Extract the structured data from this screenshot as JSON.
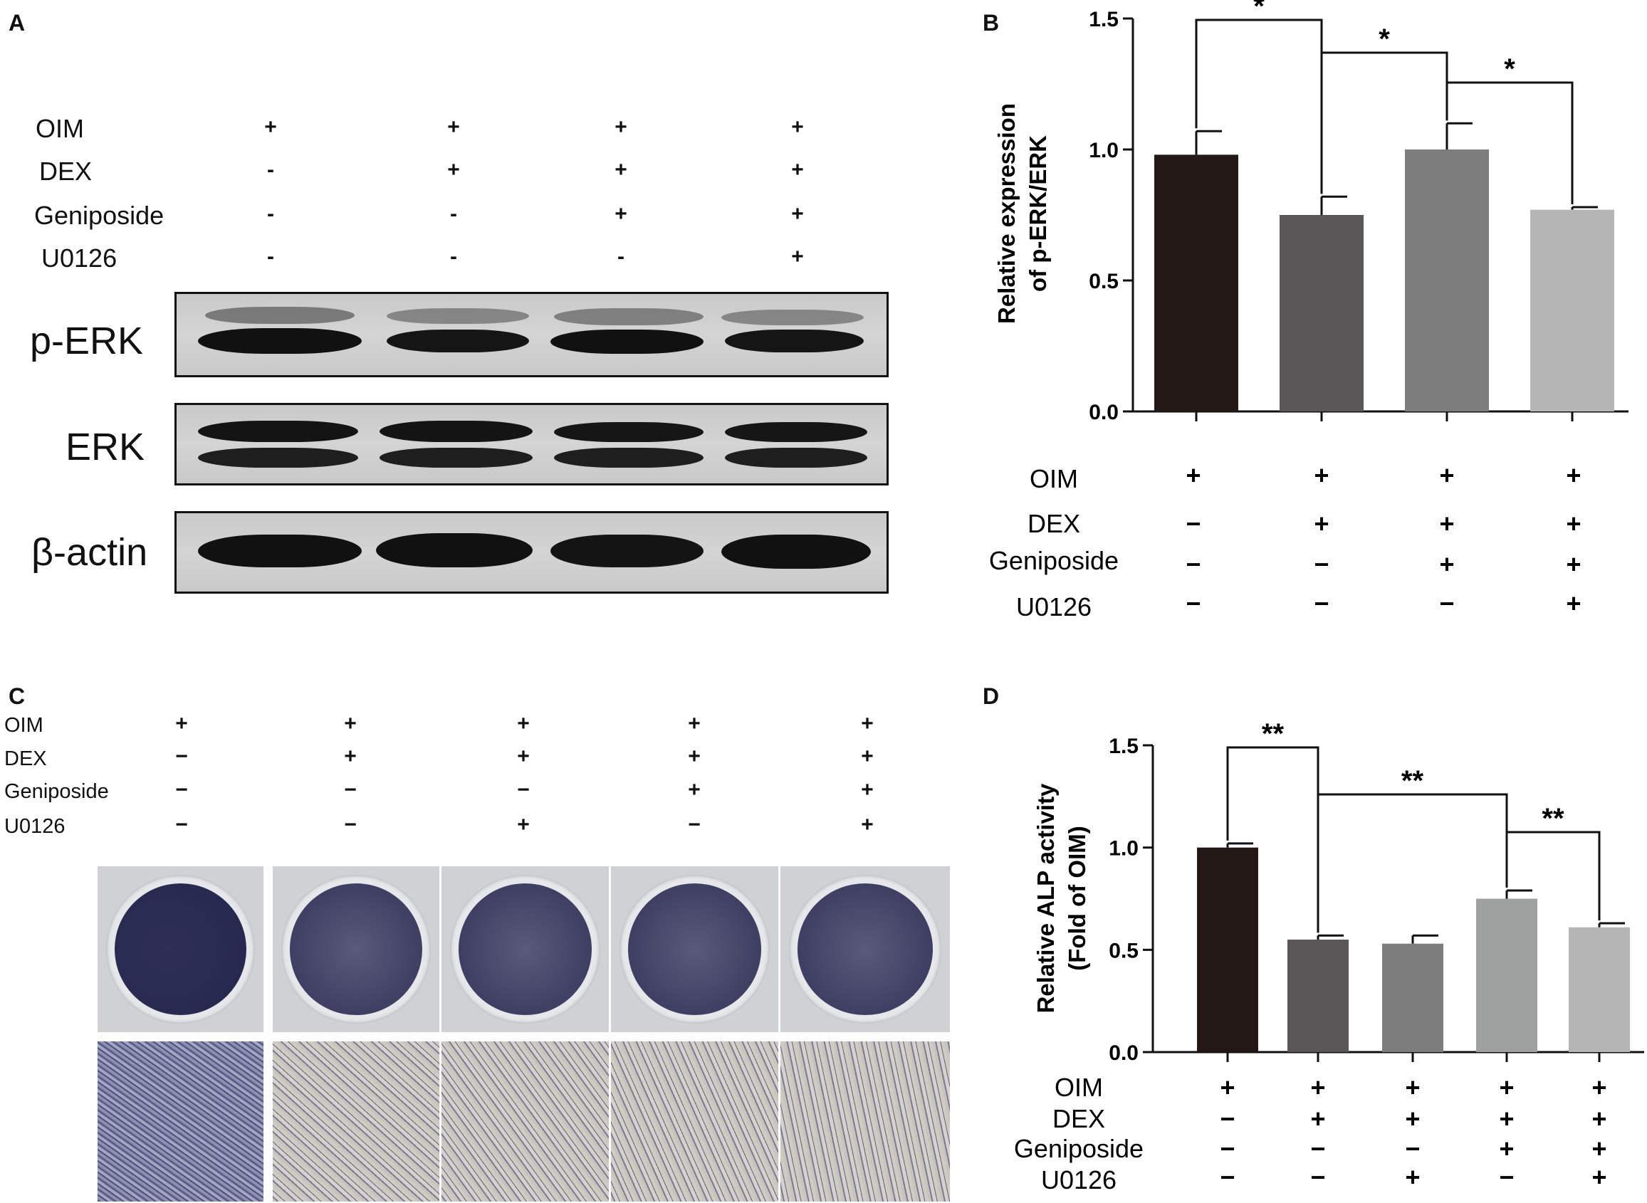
{
  "panels": {
    "a": "A",
    "b": "B",
    "c": "C",
    "d": "D"
  },
  "condition_labels": [
    "OIM",
    "DEX",
    "Geniposide",
    "U0126"
  ],
  "panel_a": {
    "signs": [
      [
        "+",
        "+",
        "+",
        "+"
      ],
      [
        "-",
        "+",
        "+",
        "+"
      ],
      [
        "-",
        "-",
        "+",
        "+"
      ],
      [
        "-",
        "-",
        "-",
        "+"
      ]
    ],
    "blots": [
      "p-ERK",
      "ERK",
      "β-actin"
    ]
  },
  "panel_c": {
    "signs": [
      [
        "+",
        "+",
        "+",
        "+",
        "+"
      ],
      [
        "−",
        "+",
        "+",
        "+",
        "+"
      ],
      [
        "−",
        "−",
        "−",
        "+",
        "+"
      ],
      [
        "−",
        "−",
        "+",
        "−",
        "+"
      ]
    ]
  },
  "chart_data": [
    {
      "type": "bar",
      "panel": "B",
      "ylabel": [
        "Relative expression",
        "of p-ERK/ERK"
      ],
      "ylim": [
        0,
        1.5
      ],
      "yticks": [
        "0.0",
        "0.5",
        "1.0",
        "1.5"
      ],
      "categories": [
        "OIM",
        "OIM+DEX",
        "OIM+DEX+Geniposide",
        "OIM+DEX+Geniposide+U0126"
      ],
      "values": [
        0.98,
        0.75,
        1.0,
        0.77
      ],
      "errors": [
        0.09,
        0.07,
        0.1,
        0.01
      ],
      "colors": [
        "#231815",
        "#595757",
        "#7d7d7d",
        "#b5b5b6"
      ],
      "signs": [
        [
          "+",
          "+",
          "+",
          "+"
        ],
        [
          "−",
          "+",
          "+",
          "+"
        ],
        [
          "−",
          "−",
          "+",
          "+"
        ],
        [
          "−",
          "−",
          "−",
          "+"
        ]
      ],
      "significance": [
        {
          "from": 0,
          "to": 1,
          "label": "*"
        },
        {
          "from": 1,
          "to": 2,
          "label": "*"
        },
        {
          "from": 2,
          "to": 3,
          "label": "*"
        }
      ]
    },
    {
      "type": "bar",
      "panel": "D",
      "ylabel": [
        "Relative ALP activity",
        "(Fold of OIM)"
      ],
      "ylim": [
        0,
        1.5
      ],
      "yticks": [
        "0.0",
        "0.5",
        "1.0",
        "1.5"
      ],
      "categories": [
        "OIM",
        "OIM+DEX",
        "OIM+DEX+U0126",
        "OIM+DEX+Geniposide",
        "OIM+DEX+Geniposide+U0126"
      ],
      "values": [
        1.0,
        0.55,
        0.53,
        0.75,
        0.61
      ],
      "errors": [
        0.02,
        0.02,
        0.04,
        0.04,
        0.02
      ],
      "colors": [
        "#231815",
        "#595757",
        "#7d7d7d",
        "#9fa0a0",
        "#b5b5b6"
      ],
      "signs": [
        [
          "+",
          "+",
          "+",
          "+",
          "+"
        ],
        [
          "−",
          "+",
          "+",
          "+",
          "+"
        ],
        [
          "−",
          "−",
          "−",
          "+",
          "+"
        ],
        [
          "−",
          "−",
          "+",
          "−",
          "+"
        ]
      ],
      "significance": [
        {
          "from": 0,
          "to": 1,
          "label": "**"
        },
        {
          "from": 1,
          "to": 3,
          "label": "**"
        },
        {
          "from": 3,
          "to": 4,
          "label": "**"
        }
      ]
    }
  ]
}
